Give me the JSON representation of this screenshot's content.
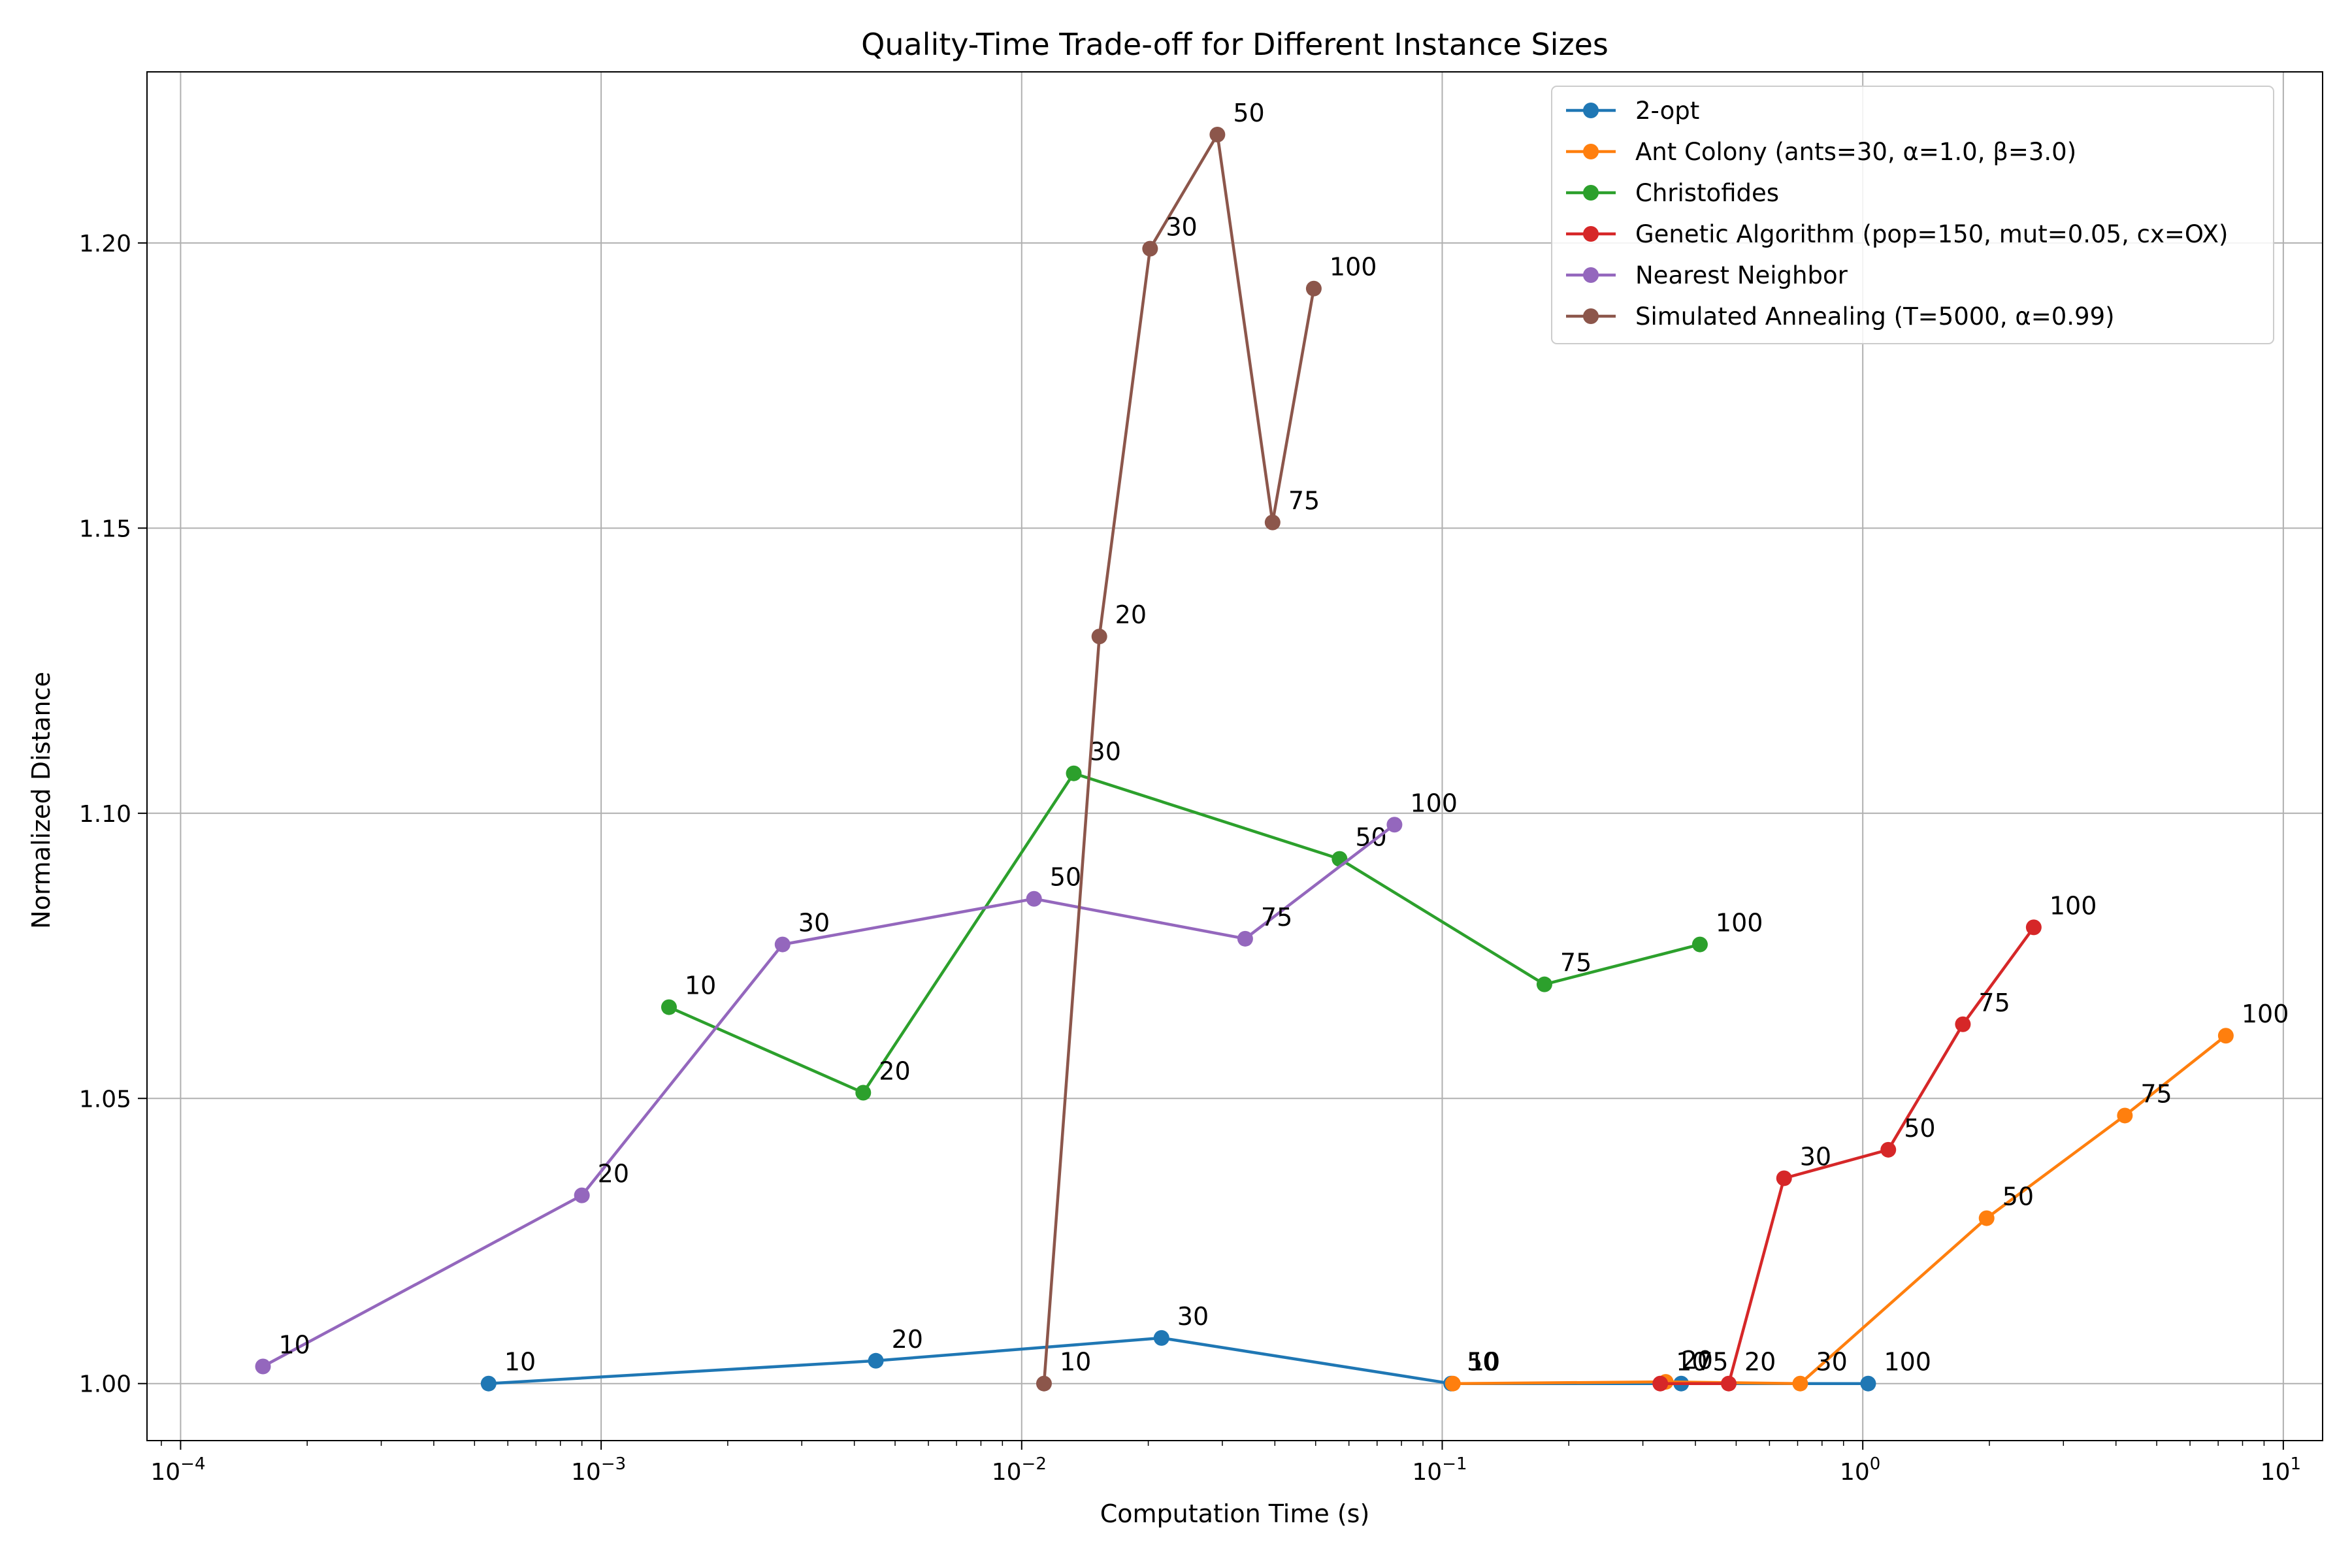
{
  "chart_data": {
    "type": "line",
    "title": "Quality-Time Trade-off for Different Instance Sizes",
    "xlabel": "Computation Time (s)",
    "ylabel": "Normalized Distance",
    "xscale": "log",
    "xlim": [
      8.32e-05,
      12.4
    ],
    "ylim": [
      0.99,
      1.23
    ],
    "x_ticks": [
      {
        "value": 0.0001,
        "base": "10",
        "exp": "−4"
      },
      {
        "value": 0.001,
        "base": "10",
        "exp": "−3"
      },
      {
        "value": 0.01,
        "base": "10",
        "exp": "−2"
      },
      {
        "value": 0.1,
        "base": "10",
        "exp": "−1"
      },
      {
        "value": 1,
        "base": "10",
        "exp": "0"
      },
      {
        "value": 10,
        "base": "10",
        "exp": "1"
      }
    ],
    "y_ticks": [
      {
        "value": 1.0,
        "label": "1.00"
      },
      {
        "value": 1.05,
        "label": "1.05"
      },
      {
        "value": 1.1,
        "label": "1.10"
      },
      {
        "value": 1.15,
        "label": "1.15"
      },
      {
        "value": 1.2,
        "label": "1.20"
      }
    ],
    "grid": true,
    "legend_position": "top-right",
    "series": [
      {
        "name": "2-opt",
        "color": "#1f77b4",
        "points": [
          {
            "x": 0.00054,
            "y": 1.0,
            "label": "10"
          },
          {
            "x": 0.0045,
            "y": 1.004,
            "label": "20"
          },
          {
            "x": 0.0215,
            "y": 1.008,
            "label": "30"
          },
          {
            "x": 0.105,
            "y": 1.0,
            "label": "50"
          },
          {
            "x": 0.37,
            "y": 1.0,
            "label": "75"
          },
          {
            "x": 1.03,
            "y": 1.0,
            "label": "100"
          }
        ]
      },
      {
        "name": "Ant Colony (ants=30, α=1.0, β=3.0)",
        "color": "#ff7f0e",
        "points": [
          {
            "x": 0.106,
            "y": 1.0,
            "label": "10"
          },
          {
            "x": 0.34,
            "y": 1.0003,
            "label": "20"
          },
          {
            "x": 0.71,
            "y": 1.0,
            "label": "30"
          },
          {
            "x": 1.97,
            "y": 1.029,
            "label": "50"
          },
          {
            "x": 4.2,
            "y": 1.047,
            "label": "75"
          },
          {
            "x": 7.3,
            "y": 1.061,
            "label": "100"
          }
        ]
      },
      {
        "name": "Christofides",
        "color": "#2ca02c",
        "points": [
          {
            "x": 0.00145,
            "y": 1.066,
            "label": "10"
          },
          {
            "x": 0.0042,
            "y": 1.051,
            "label": "20"
          },
          {
            "x": 0.0133,
            "y": 1.107,
            "label": "30"
          },
          {
            "x": 0.057,
            "y": 1.092,
            "label": "50"
          },
          {
            "x": 0.175,
            "y": 1.07,
            "label": "75"
          },
          {
            "x": 0.41,
            "y": 1.077,
            "label": "100"
          }
        ]
      },
      {
        "name": "Genetic Algorithm (pop=150, mut=0.05, cx=OX)",
        "color": "#d62728",
        "points": [
          {
            "x": 0.33,
            "y": 1.0,
            "label": "10"
          },
          {
            "x": 0.48,
            "y": 1.0,
            "label": "20"
          },
          {
            "x": 0.65,
            "y": 1.036,
            "label": "30"
          },
          {
            "x": 1.15,
            "y": 1.041,
            "label": "50"
          },
          {
            "x": 1.73,
            "y": 1.063,
            "label": "75"
          },
          {
            "x": 2.55,
            "y": 1.08,
            "label": "100"
          }
        ]
      },
      {
        "name": "Nearest Neighbor",
        "color": "#9467bd",
        "points": [
          {
            "x": 0.000157,
            "y": 1.003,
            "label": "10"
          },
          {
            "x": 0.0009,
            "y": 1.033,
            "label": "20"
          },
          {
            "x": 0.0027,
            "y": 1.077,
            "label": "30"
          },
          {
            "x": 0.0107,
            "y": 1.085,
            "label": "50"
          },
          {
            "x": 0.034,
            "y": 1.078,
            "label": "75"
          },
          {
            "x": 0.077,
            "y": 1.098,
            "label": "100"
          }
        ]
      },
      {
        "name": "Simulated Annealing (T=5000, α=0.99)",
        "color": "#8c564b",
        "points": [
          {
            "x": 0.0113,
            "y": 1.0,
            "label": "10"
          },
          {
            "x": 0.0153,
            "y": 1.131,
            "label": "20"
          },
          {
            "x": 0.0202,
            "y": 1.199,
            "label": "30"
          },
          {
            "x": 0.0292,
            "y": 1.219,
            "label": "50"
          },
          {
            "x": 0.0395,
            "y": 1.151,
            "label": "75"
          },
          {
            "x": 0.0495,
            "y": 1.192,
            "label": "100"
          }
        ]
      }
    ]
  }
}
